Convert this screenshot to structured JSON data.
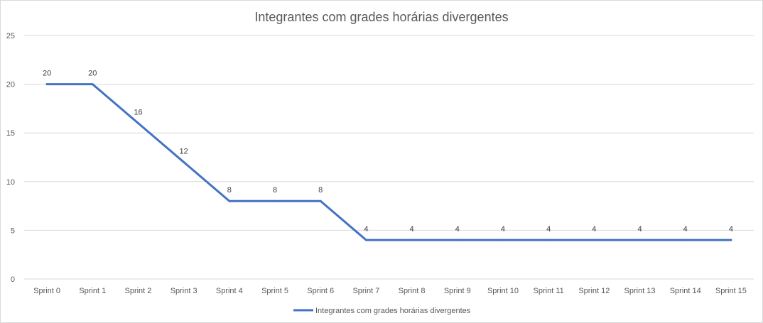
{
  "chart_data": {
    "type": "line",
    "title": "Integrantes com grades horárias divergentes",
    "xlabel": "",
    "ylabel": "",
    "categories": [
      "Sprint 0",
      "Sprint 1",
      "Sprint 2",
      "Sprint 3",
      "Sprint 4",
      "Sprint 5",
      "Sprint 6",
      "Sprint 7",
      "Sprint 8",
      "Sprint 9",
      "Sprint 10",
      "Sprint 11",
      "Sprint 12",
      "Sprint 13",
      "Sprint 14",
      "Sprint 15"
    ],
    "series": [
      {
        "name": "Integrantes com grades horárias divergentes",
        "values": [
          20,
          20,
          16,
          12,
          8,
          8,
          8,
          4,
          4,
          4,
          4,
          4,
          4,
          4,
          4,
          4
        ],
        "color": "#4472c4"
      }
    ],
    "ylim": [
      0,
      25
    ],
    "yticks": [
      0,
      5,
      10,
      15,
      20,
      25
    ],
    "grid": true,
    "legend": "bottom",
    "data_labels": true
  }
}
